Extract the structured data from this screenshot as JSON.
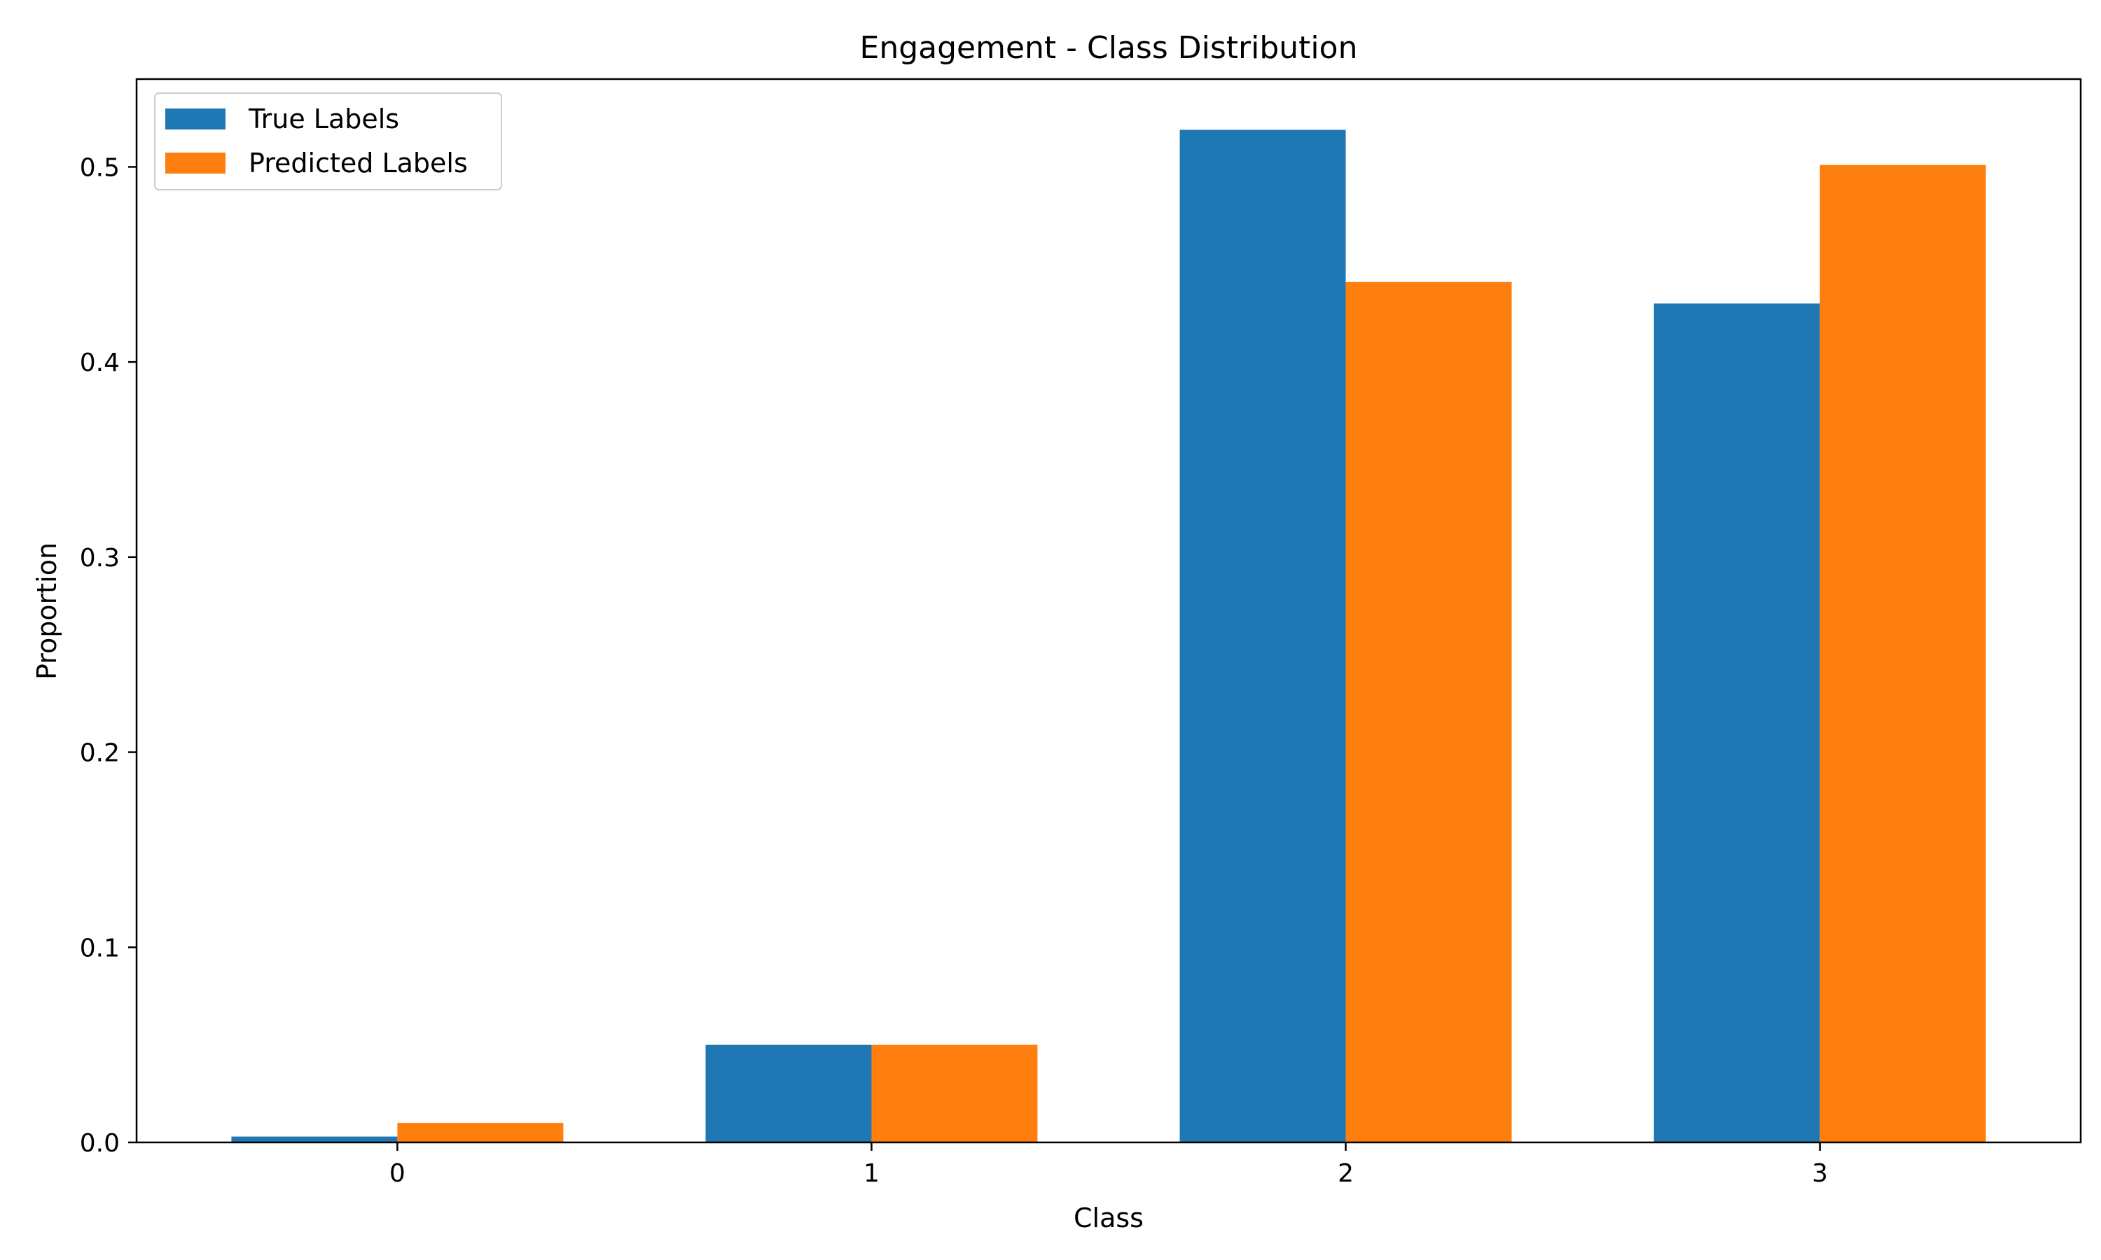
{
  "chart_data": {
    "type": "bar",
    "title": "Engagement - Class Distribution",
    "xlabel": "Class",
    "ylabel": "Proportion",
    "categories": [
      "0",
      "1",
      "2",
      "3"
    ],
    "ylim": [
      0,
      0.545
    ],
    "yticks": [
      0.0,
      0.1,
      0.2,
      0.3,
      0.4,
      0.5
    ],
    "ytick_labels": [
      "0.0",
      "0.1",
      "0.2",
      "0.3",
      "0.4",
      "0.5"
    ],
    "grid": false,
    "legend_position": "top-left",
    "series": [
      {
        "name": "True Labels",
        "color": "#1f77b4",
        "values": [
          0.003,
          0.05,
          0.519,
          0.43
        ]
      },
      {
        "name": "Predicted Labels",
        "color": "#ff7f0e",
        "values": [
          0.01,
          0.05,
          0.441,
          0.501
        ]
      }
    ]
  }
}
